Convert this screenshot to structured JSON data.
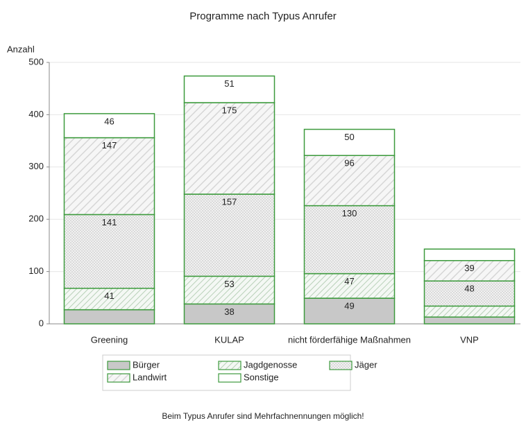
{
  "chart_data": {
    "type": "bar",
    "stacked": true,
    "title": "Programme nach Typus Anrufer",
    "y_label": "Anzahl",
    "footnote": "Beim Typus Anrufer sind Mehrfachnennungen möglich!",
    "categories": [
      "Greening",
      "KULAP",
      "nicht förderfähige Maßnahmen",
      "VNP"
    ],
    "series": [
      {
        "name": "Bürger",
        "color": "#c8c8c8",
        "values": [
          27,
          38,
          49,
          13
        ]
      },
      {
        "name": "Jagdgenosse",
        "color": "#d8e8d8",
        "values": [
          41,
          53,
          47,
          21
        ]
      },
      {
        "name": "Jäger",
        "color": "#e0e0e0",
        "values": [
          141,
          157,
          130,
          48
        ]
      },
      {
        "name": "Landwirt",
        "color": "#d4d4d4",
        "values": [
          147,
          175,
          96,
          39
        ]
      },
      {
        "name": "Sonstige",
        "color": "#ffffff",
        "values": [
          46,
          51,
          50,
          22
        ]
      }
    ],
    "edge_color": "#3c9a3c",
    "ylim": [
      0,
      500
    ],
    "yticks": [
      0,
      100,
      200,
      300,
      400,
      500
    ],
    "grid": true
  }
}
